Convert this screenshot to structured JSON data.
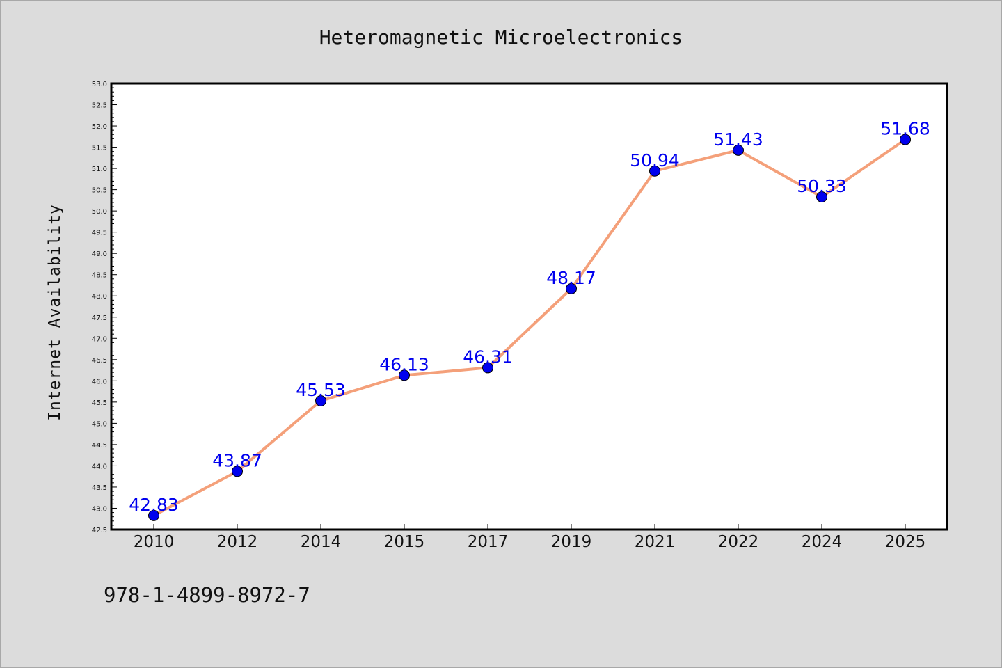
{
  "chart_data": {
    "type": "line",
    "title": "Heteromagnetic Microelectronics",
    "xlabel": "",
    "ylabel": "Internet Availability",
    "categories": [
      "2010",
      "2012",
      "2014",
      "2015",
      "2017",
      "2019",
      "2021",
      "2022",
      "2024",
      "2025"
    ],
    "series": [
      {
        "values": [
          42.83,
          43.87,
          45.53,
          46.13,
          46.31,
          48.17,
          50.94,
          51.43,
          50.33,
          51.68
        ],
        "labels": [
          "42.83",
          "43.87",
          "45.53",
          "46.13",
          "46.31",
          "48.17",
          "50.94",
          "51.43",
          "50.33",
          "51.68"
        ],
        "line_color": "#f4a07a",
        "marker_color": "#0000ee"
      }
    ],
    "ylim": [
      42.5,
      53.0
    ],
    "yticks": [
      "42.5",
      "43.0",
      "43.5",
      "44.0",
      "44.5",
      "45.0",
      "45.5",
      "46.0",
      "46.5",
      "47.0",
      "47.5",
      "48.0",
      "48.5",
      "49.0",
      "49.5",
      "50.0",
      "50.5",
      "51.0",
      "51.5",
      "52.0",
      "52.5",
      "53.0"
    ],
    "grid": false,
    "legend": "none"
  },
  "footer": {
    "isbn": "978-1-4899-8972-7"
  }
}
